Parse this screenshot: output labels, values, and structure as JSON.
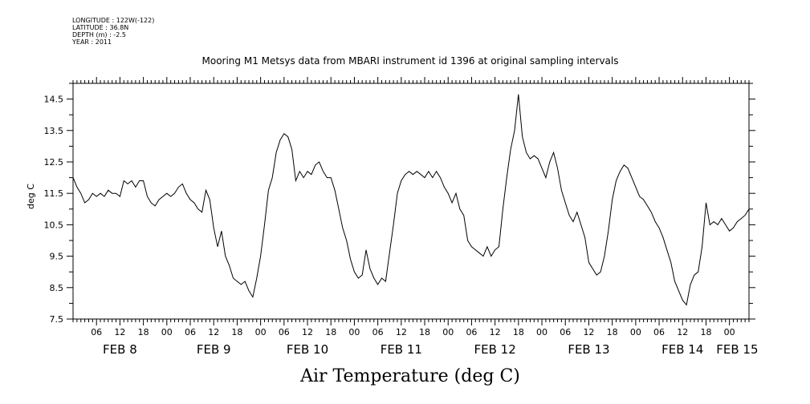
{
  "header": {
    "longitude": "LONGITUDE : 122W(-122)",
    "latitude": "LATITUDE : 36.8N",
    "depth": "DEPTH (m) : -2.5",
    "year": "YEAR : 2011"
  },
  "chart_data": {
    "type": "line",
    "title": "Mooring M1 Metsys data from MBARI instrument id 1396 at original sampling intervals",
    "xlabel": "Air Temperature (deg C)",
    "ylabel": "deg C",
    "ylim": [
      7.5,
      15.0
    ],
    "yticks": [
      "7.5",
      "8.5",
      "9.5",
      "10.5",
      "11.5",
      "12.5",
      "13.5",
      "14.5"
    ],
    "x_unit": "hours since 2011-02-08 00:00",
    "xlim": [
      0,
      173
    ],
    "hour_ticks": [
      {
        "x": 6,
        "label": "06"
      },
      {
        "x": 12,
        "label": "12"
      },
      {
        "x": 18,
        "label": "18"
      },
      {
        "x": 24,
        "label": "00"
      },
      {
        "x": 30,
        "label": "06"
      },
      {
        "x": 36,
        "label": "12"
      },
      {
        "x": 42,
        "label": "18"
      },
      {
        "x": 48,
        "label": "00"
      },
      {
        "x": 54,
        "label": "06"
      },
      {
        "x": 60,
        "label": "12"
      },
      {
        "x": 66,
        "label": "18"
      },
      {
        "x": 72,
        "label": "00"
      },
      {
        "x": 78,
        "label": "06"
      },
      {
        "x": 84,
        "label": "12"
      },
      {
        "x": 90,
        "label": "18"
      },
      {
        "x": 96,
        "label": "00"
      },
      {
        "x": 102,
        "label": "06"
      },
      {
        "x": 108,
        "label": "12"
      },
      {
        "x": 114,
        "label": "18"
      },
      {
        "x": 120,
        "label": "00"
      },
      {
        "x": 126,
        "label": "06"
      },
      {
        "x": 132,
        "label": "12"
      },
      {
        "x": 138,
        "label": "18"
      },
      {
        "x": 144,
        "label": "00"
      },
      {
        "x": 150,
        "label": "06"
      },
      {
        "x": 156,
        "label": "12"
      },
      {
        "x": 162,
        "label": "18"
      },
      {
        "x": 168,
        "label": "00"
      }
    ],
    "date_labels": [
      {
        "x": 12,
        "label": "FEB  8"
      },
      {
        "x": 36,
        "label": "FEB  9"
      },
      {
        "x": 60,
        "label": "FEB 10"
      },
      {
        "x": 84,
        "label": "FEB 11"
      },
      {
        "x": 108,
        "label": "FEB 12"
      },
      {
        "x": 132,
        "label": "FEB 13"
      },
      {
        "x": 156,
        "label": "FEB 14"
      },
      {
        "x": 170,
        "label": "FEB 15"
      }
    ],
    "series": [
      {
        "name": "",
        "color": "#000000",
        "points": [
          [
            0,
            12.0
          ],
          [
            1,
            11.7
          ],
          [
            2,
            11.5
          ],
          [
            3,
            11.2
          ],
          [
            4,
            11.3
          ],
          [
            5,
            11.5
          ],
          [
            6,
            11.4
          ],
          [
            7,
            11.5
          ],
          [
            8,
            11.4
          ],
          [
            9,
            11.6
          ],
          [
            10,
            11.5
          ],
          [
            11,
            11.5
          ],
          [
            12,
            11.4
          ],
          [
            13,
            11.9
          ],
          [
            14,
            11.8
          ],
          [
            15,
            11.9
          ],
          [
            16,
            11.7
          ],
          [
            17,
            11.9
          ],
          [
            18,
            11.9
          ],
          [
            19,
            11.4
          ],
          [
            20,
            11.2
          ],
          [
            21,
            11.1
          ],
          [
            22,
            11.3
          ],
          [
            23,
            11.4
          ],
          [
            24,
            11.5
          ],
          [
            25,
            11.4
          ],
          [
            26,
            11.5
          ],
          [
            27,
            11.7
          ],
          [
            28,
            11.8
          ],
          [
            29,
            11.5
          ],
          [
            30,
            11.3
          ],
          [
            31,
            11.2
          ],
          [
            32,
            11.0
          ],
          [
            33,
            10.9
          ],
          [
            34,
            11.6
          ],
          [
            35,
            11.3
          ],
          [
            36,
            10.4
          ],
          [
            37,
            9.8
          ],
          [
            38,
            10.3
          ],
          [
            39,
            9.5
          ],
          [
            40,
            9.2
          ],
          [
            41,
            8.8
          ],
          [
            42,
            8.7
          ],
          [
            43,
            8.6
          ],
          [
            44,
            8.7
          ],
          [
            45,
            8.4
          ],
          [
            46,
            8.2
          ],
          [
            47,
            8.8
          ],
          [
            48,
            9.5
          ],
          [
            49,
            10.5
          ],
          [
            50,
            11.6
          ],
          [
            51,
            12.0
          ],
          [
            52,
            12.8
          ],
          [
            53,
            13.2
          ],
          [
            54,
            13.4
          ],
          [
            55,
            13.3
          ],
          [
            56,
            12.9
          ],
          [
            57,
            11.9
          ],
          [
            58,
            12.2
          ],
          [
            59,
            12.0
          ],
          [
            60,
            12.2
          ],
          [
            61,
            12.1
          ],
          [
            62,
            12.4
          ],
          [
            63,
            12.5
          ],
          [
            64,
            12.2
          ],
          [
            65,
            12.0
          ],
          [
            66,
            12.0
          ],
          [
            67,
            11.6
          ],
          [
            68,
            11.0
          ],
          [
            69,
            10.4
          ],
          [
            70,
            10.0
          ],
          [
            71,
            9.4
          ],
          [
            72,
            9.0
          ],
          [
            73,
            8.8
          ],
          [
            74,
            8.9
          ],
          [
            75,
            9.7
          ],
          [
            76,
            9.1
          ],
          [
            77,
            8.8
          ],
          [
            78,
            8.6
          ],
          [
            79,
            8.8
          ],
          [
            80,
            8.7
          ],
          [
            81,
            9.6
          ],
          [
            82,
            10.5
          ],
          [
            83,
            11.5
          ],
          [
            84,
            11.9
          ],
          [
            85,
            12.1
          ],
          [
            86,
            12.2
          ],
          [
            87,
            12.1
          ],
          [
            88,
            12.2
          ],
          [
            89,
            12.1
          ],
          [
            90,
            12.0
          ],
          [
            91,
            12.2
          ],
          [
            92,
            12.0
          ],
          [
            93,
            12.2
          ],
          [
            94,
            12.0
          ],
          [
            95,
            11.7
          ],
          [
            96,
            11.5
          ],
          [
            97,
            11.2
          ],
          [
            98,
            11.5
          ],
          [
            99,
            11.0
          ],
          [
            100,
            10.8
          ],
          [
            101,
            10.0
          ],
          [
            102,
            9.8
          ],
          [
            103,
            9.7
          ],
          [
            104,
            9.6
          ],
          [
            105,
            9.5
          ],
          [
            106,
            9.8
          ],
          [
            107,
            9.5
          ],
          [
            108,
            9.7
          ],
          [
            109,
            9.8
          ],
          [
            110,
            11.0
          ],
          [
            111,
            12.0
          ],
          [
            112,
            12.9
          ],
          [
            113,
            13.5
          ],
          [
            114,
            14.65
          ],
          [
            115,
            13.3
          ],
          [
            116,
            12.8
          ],
          [
            117,
            12.6
          ],
          [
            118,
            12.7
          ],
          [
            119,
            12.6
          ],
          [
            120,
            12.3
          ],
          [
            121,
            12.0
          ],
          [
            122,
            12.5
          ],
          [
            123,
            12.8
          ],
          [
            124,
            12.3
          ],
          [
            125,
            11.6
          ],
          [
            126,
            11.2
          ],
          [
            127,
            10.8
          ],
          [
            128,
            10.6
          ],
          [
            129,
            10.9
          ],
          [
            130,
            10.5
          ],
          [
            131,
            10.1
          ],
          [
            132,
            9.3
          ],
          [
            133,
            9.1
          ],
          [
            134,
            8.9
          ],
          [
            135,
            9.0
          ],
          [
            136,
            9.5
          ],
          [
            137,
            10.3
          ],
          [
            138,
            11.3
          ],
          [
            139,
            11.9
          ],
          [
            140,
            12.2
          ],
          [
            141,
            12.4
          ],
          [
            142,
            12.3
          ],
          [
            143,
            12.0
          ],
          [
            144,
            11.7
          ],
          [
            145,
            11.4
          ],
          [
            146,
            11.3
          ],
          [
            147,
            11.1
          ],
          [
            148,
            10.9
          ],
          [
            149,
            10.6
          ],
          [
            150,
            10.4
          ],
          [
            151,
            10.1
          ],
          [
            152,
            9.7
          ],
          [
            153,
            9.3
          ],
          [
            154,
            8.7
          ],
          [
            155,
            8.4
          ],
          [
            156,
            8.1
          ],
          [
            157,
            7.95
          ],
          [
            158,
            8.6
          ],
          [
            159,
            8.9
          ],
          [
            160,
            9.0
          ],
          [
            161,
            9.8
          ],
          [
            162,
            11.2
          ],
          [
            163,
            10.5
          ],
          [
            164,
            10.6
          ],
          [
            165,
            10.5
          ],
          [
            166,
            10.7
          ],
          [
            167,
            10.5
          ],
          [
            168,
            10.3
          ],
          [
            169,
            10.4
          ],
          [
            170,
            10.6
          ],
          [
            171,
            10.7
          ],
          [
            172,
            10.8
          ],
          [
            173,
            11.0
          ]
        ]
      }
    ],
    "grid": false
  }
}
